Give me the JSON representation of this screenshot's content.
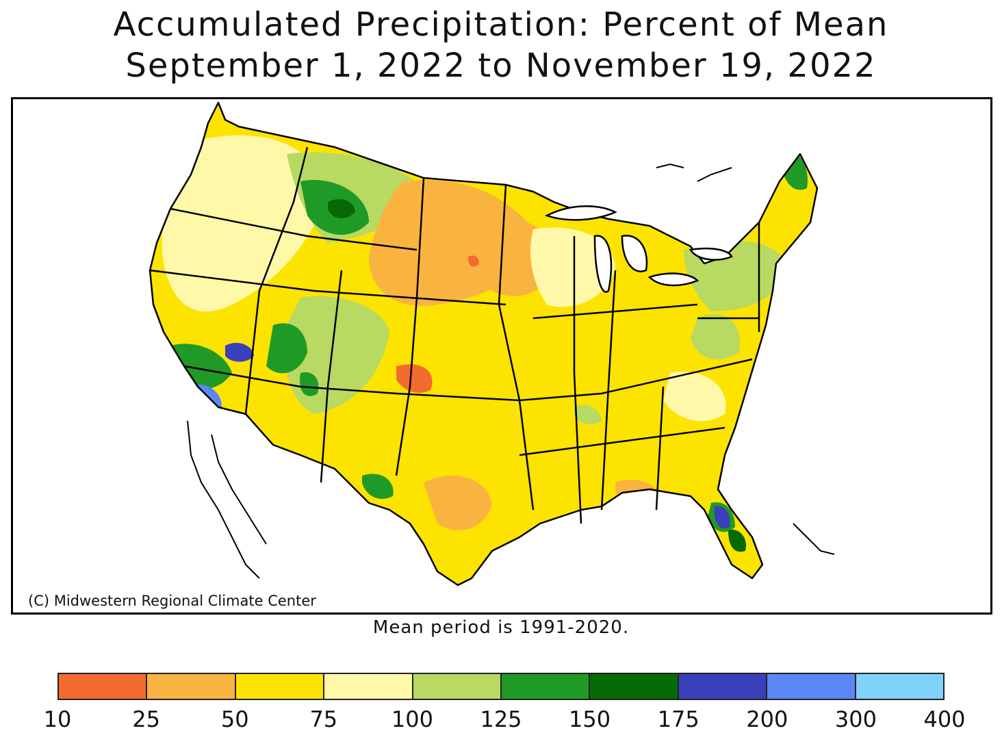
{
  "title": {
    "line1": "Accumulated Precipitation: Percent of Mean",
    "line2": "September 1, 2022 to November 19, 2022"
  },
  "map": {
    "region": "Contiguous United States",
    "copyright": "(C) Midwestern Regional Climate Center",
    "mean_period_note": "Mean period is 1991-2020."
  },
  "legend": {
    "ticks": [
      "10",
      "25",
      "50",
      "75",
      "100",
      "125",
      "150",
      "175",
      "200",
      "300",
      "400"
    ],
    "bins": [
      {
        "range": "10-25",
        "color": "#f46b2f"
      },
      {
        "range": "25-50",
        "color": "#f9b341"
      },
      {
        "range": "50-75",
        "color": "#fde300"
      },
      {
        "range": "75-100",
        "color": "#fff8a8"
      },
      {
        "range": "100-125",
        "color": "#b8d962"
      },
      {
        "range": "125-150",
        "color": "#1f9a26"
      },
      {
        "range": "150-175",
        "color": "#056a05"
      },
      {
        "range": "175-200",
        "color": "#3a3fbc"
      },
      {
        "range": "200-300",
        "color": "#5b86f5"
      },
      {
        "range": "300-400",
        "color": "#7fd3fb"
      }
    ]
  },
  "colors": {
    "land_base": "#fde300",
    "water": "#ffffff",
    "border": "#000000"
  }
}
